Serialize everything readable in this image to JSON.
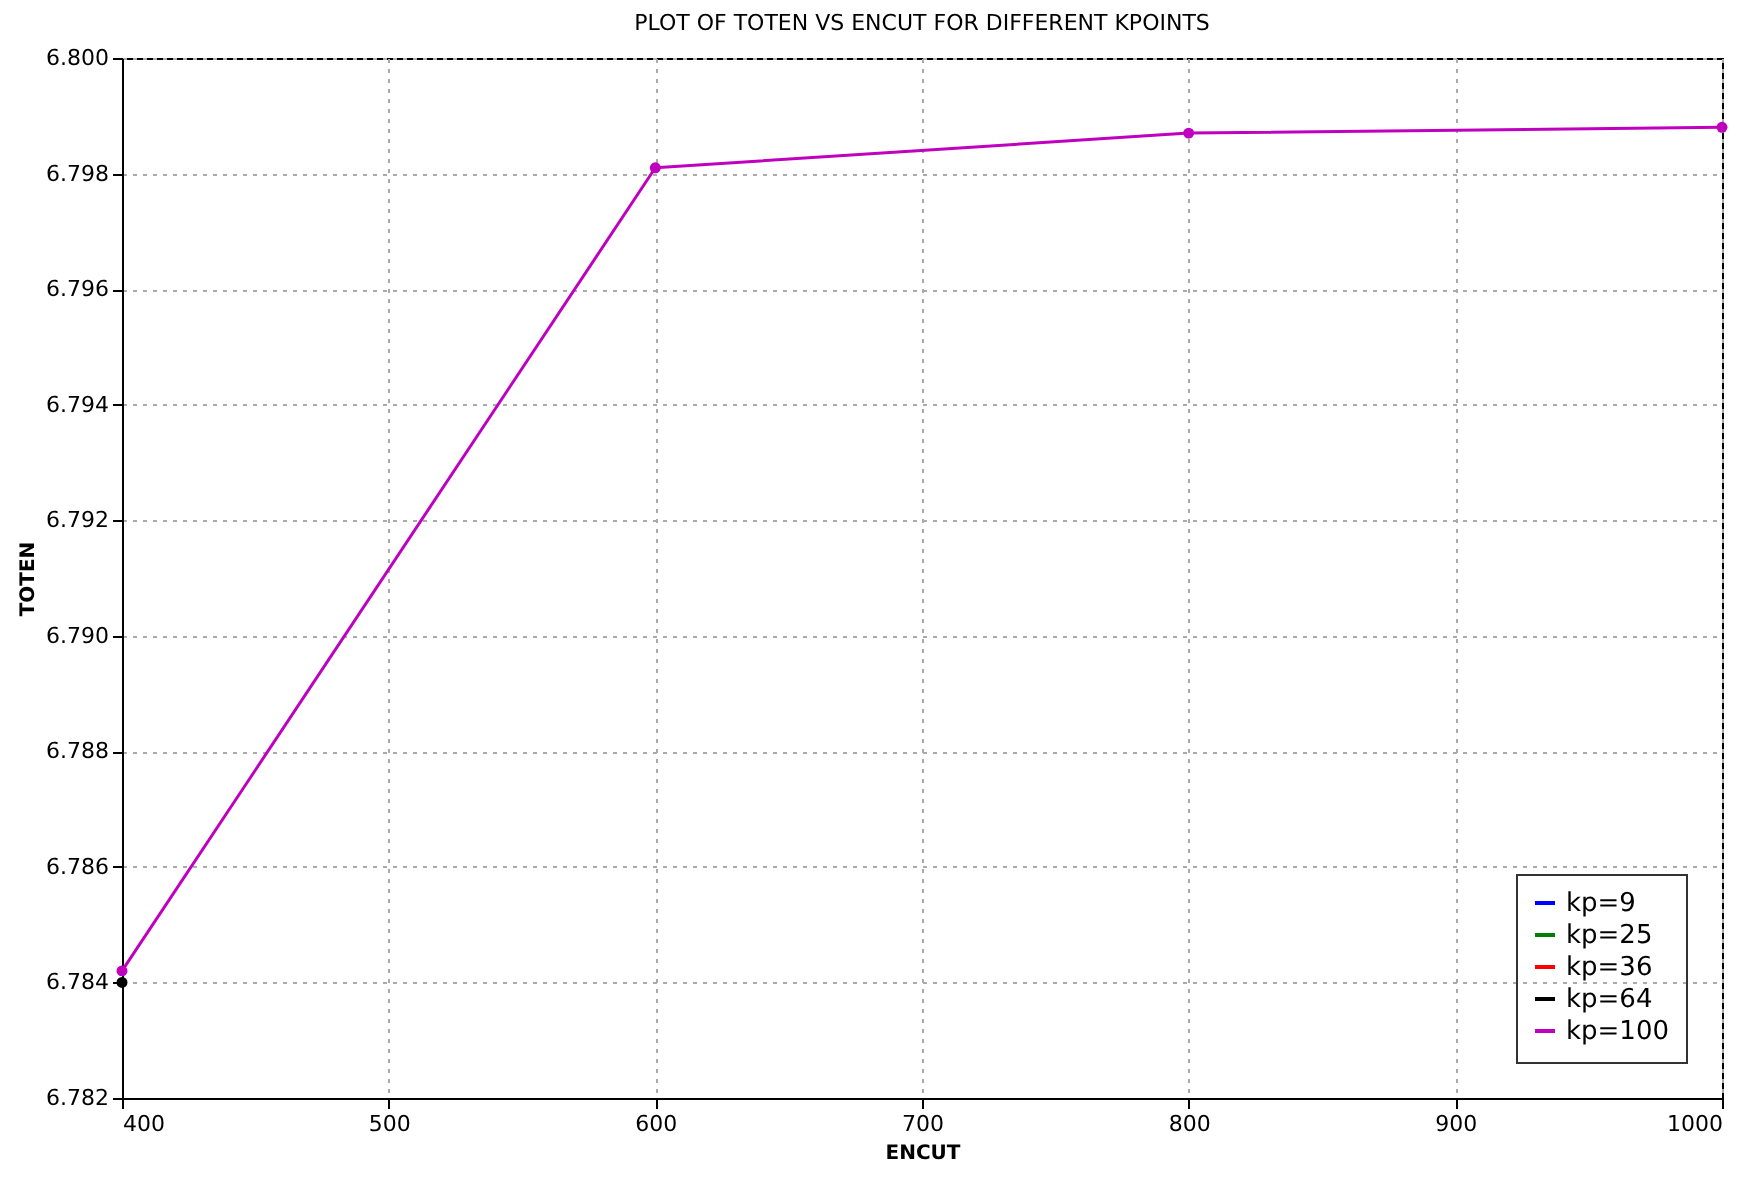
{
  "chart_data": {
    "type": "line",
    "title": "PLOT OF TOTEN VS ENCUT FOR DIFFERENT KPOINTS",
    "xlabel": "ENCUT",
    "ylabel": "TOTEN",
    "x": [
      400,
      600,
      800,
      1000
    ],
    "series": [
      {
        "name": "kp=9",
        "color": "#0000ff",
        "values": [
          null,
          null,
          null,
          null
        ]
      },
      {
        "name": "kp=25",
        "color": "#008000",
        "values": [
          null,
          null,
          null,
          null
        ]
      },
      {
        "name": "kp=36",
        "color": "#ff0000",
        "values": [
          null,
          null,
          null,
          null
        ]
      },
      {
        "name": "kp=64",
        "color": "#000000",
        "values": [
          6.784,
          null,
          null,
          null
        ]
      },
      {
        "name": "kp=100",
        "color": "#bf00bf",
        "values": [
          6.7842,
          6.7981,
          6.7987,
          6.7988
        ]
      }
    ],
    "xlim": [
      400,
      1000
    ],
    "xticks": [
      400,
      500,
      600,
      700,
      800,
      900,
      1000
    ],
    "ylim": [
      6.782,
      6.8
    ],
    "yticks": [
      6.782,
      6.784,
      6.786,
      6.788,
      {
        "value": 6.79,
        "label": "6.790"
      },
      6.792,
      6.794,
      6.796,
      6.798,
      {
        "value": 6.8,
        "label": "6.800"
      }
    ],
    "grid": true,
    "legend": "bottom right",
    "marker": "circle",
    "line_style": "solid"
  }
}
